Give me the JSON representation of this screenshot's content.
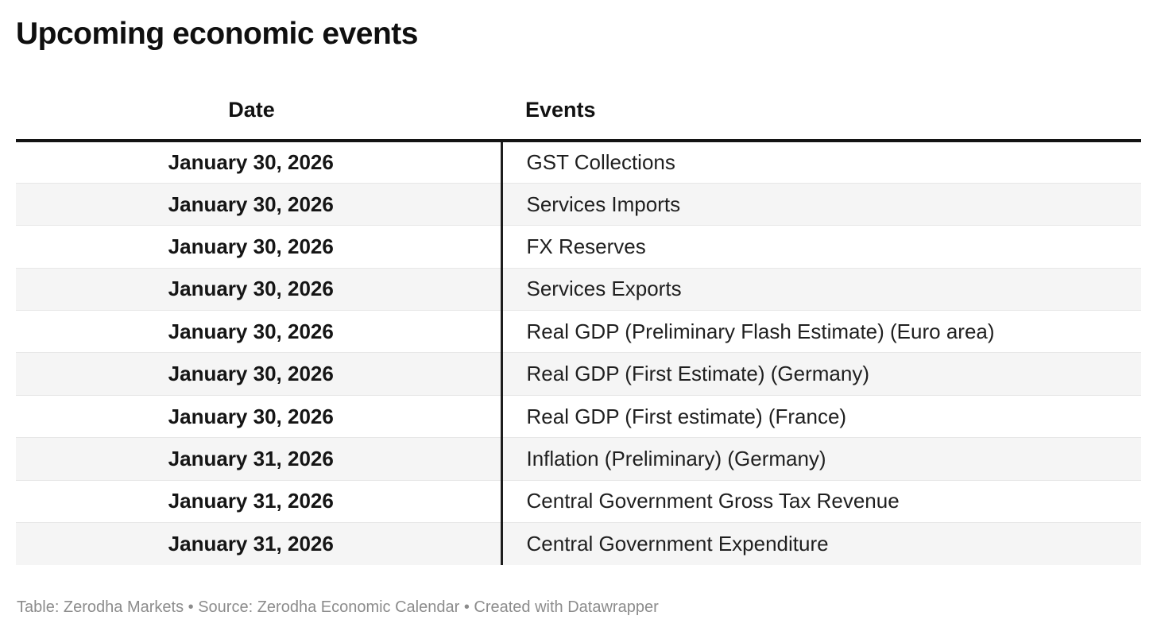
{
  "header": {
    "title": "Upcoming economic events"
  },
  "chart_data": {
    "type": "table",
    "title": "Upcoming economic events",
    "columns": [
      "Date",
      "Events"
    ],
    "rows": [
      [
        "January 30, 2026",
        "GST Collections"
      ],
      [
        "January 30, 2026",
        "Services Imports"
      ],
      [
        "January 30, 2026",
        "FX Reserves"
      ],
      [
        "January 30, 2026",
        "Services Exports"
      ],
      [
        "January 30, 2026",
        "Real GDP (Preliminary Flash Estimate) (Euro area)"
      ],
      [
        "January 30, 2026",
        "Real GDP (First Estimate) (Germany)"
      ],
      [
        "January 30, 2026",
        "Real GDP (First estimate) (France)"
      ],
      [
        "January 31, 2026",
        "Inflation (Preliminary) (Germany)"
      ],
      [
        "January 31, 2026",
        "Central Government Gross Tax Revenue"
      ],
      [
        "January 31, 2026",
        "Central Government Expenditure"
      ]
    ],
    "layout_hints": {
      "date_column_align": "center",
      "events_column_align": "left",
      "alternating_row_shading": true,
      "thick_rule_below_header": true,
      "vertical_divider_between_columns": true
    }
  },
  "footer": {
    "text": "Table: Zerodha Markets • Source: Zerodha Economic Calendar • Created with Datawrapper"
  },
  "colors": {
    "text": "#1a1a1a",
    "header_rule": "#141414",
    "column_divider": "#1d1d1d",
    "row_alt_bg": "#f5f5f5",
    "row_separator": "#e7e7e7",
    "footer_text": "#8c8c8c",
    "background": "#ffffff"
  }
}
